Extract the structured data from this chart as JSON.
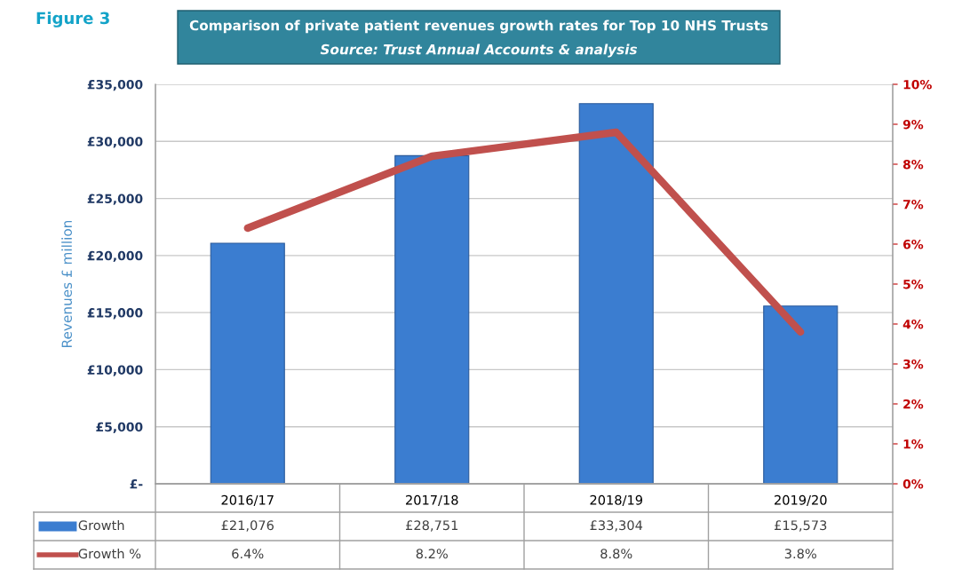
{
  "chart_data": {
    "type": "bar",
    "title": "Comparison of private patient revenues growth rates for Top 10 NHS Trusts",
    "subtitle": "Source: Trust Annual Accounts & analysis",
    "annotations": [
      "Figure 3"
    ],
    "ylabel": "Revenues £ million",
    "categories": [
      "2016/17",
      "2017/18",
      "2018/19",
      "2019/20"
    ],
    "series": [
      {
        "name": "Growth",
        "color": "#3b7dd0",
        "values": [
          21076,
          28751,
          33304,
          15573
        ],
        "value_labels": [
          "£21,076",
          "£28,751",
          "£33,304",
          "£15,573"
        ]
      },
      {
        "name": "Growth %",
        "type": "line",
        "axis": "y2",
        "color": "#c0504d",
        "values": [
          6.4,
          8.2,
          8.8,
          3.8
        ],
        "value_labels": [
          "6.4%",
          "8.2%",
          "8.8%",
          "3.8%"
        ]
      }
    ],
    "ylim": [
      0,
      35000
    ],
    "yticks": [
      {
        "value": 0,
        "label": "£-"
      },
      {
        "value": 5000,
        "label": "£5,000"
      },
      {
        "value": 10000,
        "label": "£10,000"
      },
      {
        "value": 15000,
        "label": "£15,000"
      },
      {
        "value": 20000,
        "label": "£20,000"
      },
      {
        "value": 25000,
        "label": "£25,000"
      },
      {
        "value": 30000,
        "label": "£30,000"
      },
      {
        "value": 35000,
        "label": "£35,000"
      }
    ],
    "y2lim": [
      0,
      10
    ],
    "y2ticks": [
      {
        "value": 0,
        "label": "0%"
      },
      {
        "value": 1,
        "label": "1%"
      },
      {
        "value": 2,
        "label": "2%"
      },
      {
        "value": 3,
        "label": "3%"
      },
      {
        "value": 4,
        "label": "4%"
      },
      {
        "value": 5,
        "label": "5%"
      },
      {
        "value": 6,
        "label": "6%"
      },
      {
        "value": 7,
        "label": "7%"
      },
      {
        "value": 8,
        "label": "8%"
      },
      {
        "value": 9,
        "label": "9%"
      },
      {
        "value": 10,
        "label": "10%"
      }
    ],
    "grid": "y",
    "legend": "bottom left",
    "line_style": "solid",
    "marker": "none"
  }
}
